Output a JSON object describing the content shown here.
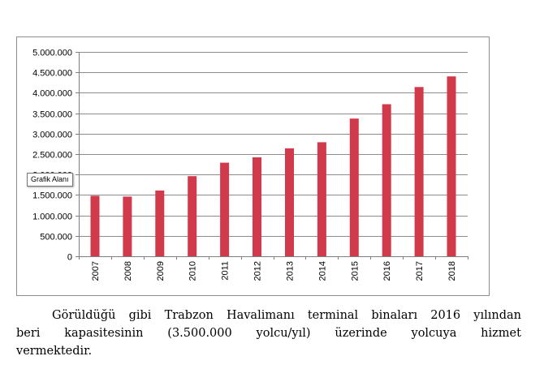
{
  "chart_data": {
    "type": "bar",
    "categories": [
      "2007",
      "2008",
      "2009",
      "2010",
      "2011",
      "2012",
      "2013",
      "2014",
      "2015",
      "2016",
      "2017",
      "2018"
    ],
    "values": [
      1480000,
      1460000,
      1610000,
      1960000,
      2290000,
      2420000,
      2640000,
      2790000,
      3370000,
      3720000,
      4140000,
      4400000
    ],
    "ylim": [
      0,
      5000000
    ],
    "yticks": [
      0,
      500000,
      1000000,
      1500000,
      2000000,
      2500000,
      3000000,
      3500000,
      4000000,
      4500000,
      5000000
    ],
    "ytick_labels": [
      "0",
      "500.000",
      "1.000.000",
      "1.500.000",
      "2.000.000",
      "2.500.000",
      "3.000.000",
      "3.500.000",
      "4.000.000",
      "4.500.000",
      "5.000.000"
    ],
    "grid": true,
    "legend": "none",
    "colors": {
      "bar": "#d13a4a",
      "grid": "#8c8c8c",
      "axis": "#7f7f7f"
    }
  },
  "tooltip": {
    "text": "Grafik Alanı"
  },
  "caption": {
    "line1_words": [
      "Görüldüğü",
      "gibi",
      "Trabzon",
      "Havalimanı",
      "terminal",
      "binaları",
      "2016",
      "yılından"
    ],
    "line2_words": [
      "beri",
      "kapasitesinin",
      "(3.500.000",
      "yolcu/yıl)",
      "üzerinde",
      "yolcuya",
      "hizmet"
    ],
    "line3": "vermektedir."
  }
}
